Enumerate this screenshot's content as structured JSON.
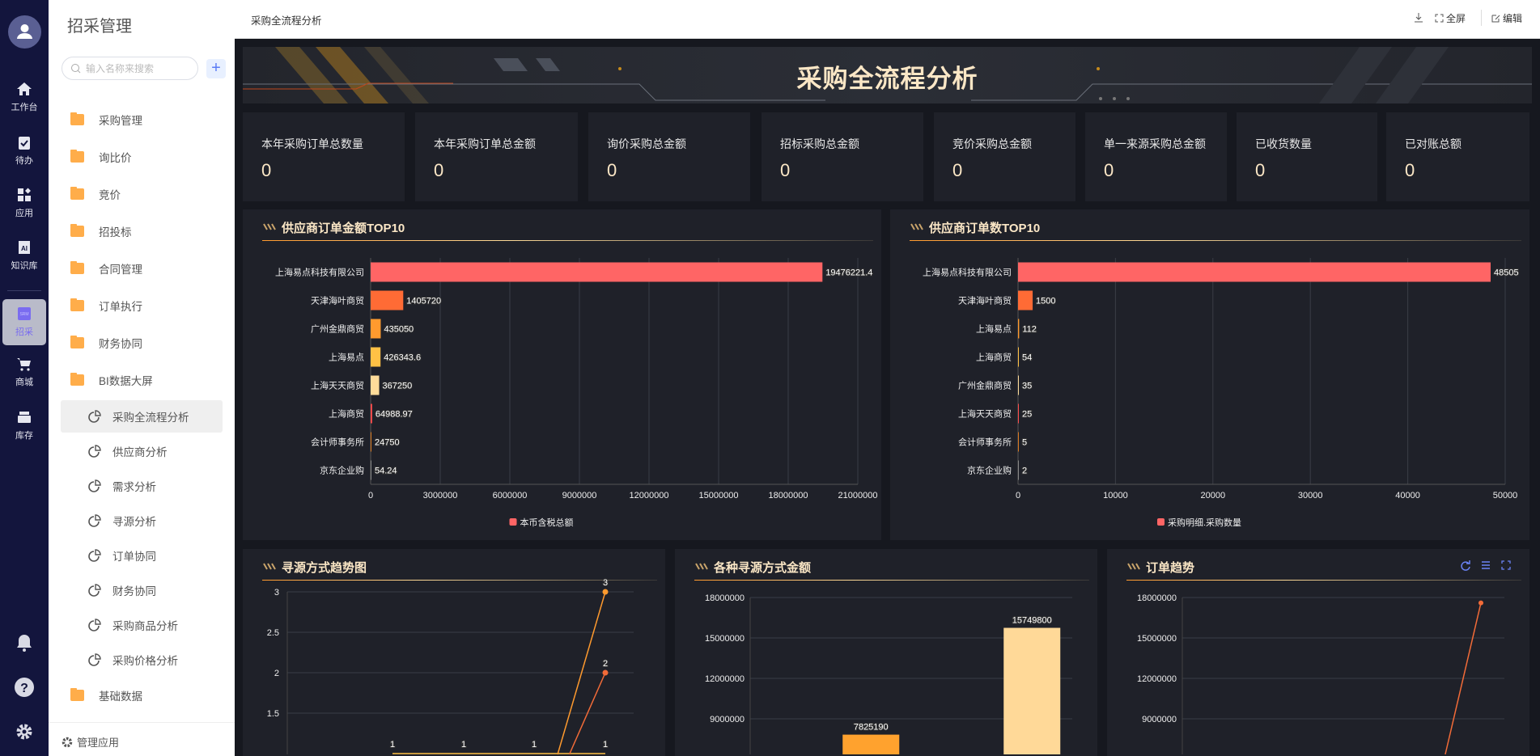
{
  "nav": {
    "items": [
      {
        "label": "工作台",
        "icon": "home-icon"
      },
      {
        "label": "待办",
        "icon": "clipboard-check-icon"
      },
      {
        "label": "应用",
        "icon": "apps-icon"
      },
      {
        "label": "知识库",
        "icon": "ai-book-icon"
      },
      {
        "label": "招采",
        "icon": "srm-icon",
        "active": true
      },
      {
        "label": "商城",
        "icon": "cart-icon"
      },
      {
        "label": "库存",
        "icon": "inbox-icon"
      }
    ],
    "bottom": [
      "bell-icon",
      "help-icon",
      "gear-icon"
    ]
  },
  "sidebar": {
    "title": "招采管理",
    "search_placeholder": "输入名称来搜索",
    "menu": [
      "采购管理",
      "询比价",
      "竞价",
      "招投标",
      "合同管理",
      "订单执行",
      "财务协同",
      "BI数据大屏"
    ],
    "sub": [
      "采购全流程分析",
      "供应商分析",
      "需求分析",
      "寻源分析",
      "订单协同",
      "财务协同",
      "采购商品分析",
      "采购价格分析"
    ],
    "selected": "采购全流程分析",
    "after": "基础数据",
    "footer": "管理应用"
  },
  "header": {
    "title": "采购全流程分析",
    "fullscreen": "全屏",
    "edit": "编辑"
  },
  "banner": {
    "title": "采购全流程分析"
  },
  "kpis": [
    {
      "label": "本年采购订单总数量",
      "value": "0"
    },
    {
      "label": "本年采购订单总金额",
      "value": "0"
    },
    {
      "label": "询价采购总金额",
      "value": "0"
    },
    {
      "label": "招标采购总金额",
      "value": "0"
    },
    {
      "label": "竞价采购总金额",
      "value": "0"
    },
    {
      "label": "单一来源采购总金额",
      "value": "0"
    },
    {
      "label": "已收货数量",
      "value": "0"
    },
    {
      "label": "已对账总额",
      "value": "0"
    }
  ],
  "colors": {
    "accent": "#ff6565",
    "title": "#fbe7c6",
    "bar_palette": [
      "#ff6565",
      "#ff6b35",
      "#ff9a2e",
      "#ffc145",
      "#ffdc9a",
      "#ff4d4d",
      "#d97a22",
      "#888"
    ]
  },
  "chart_data": [
    {
      "type": "bar",
      "orientation": "horizontal",
      "title": "供应商订单金额TOP10",
      "categories": [
        "上海易点科技有限公司",
        "天津海叶商贸",
        "广州金鼎商贸",
        "上海易点",
        "上海天天商贸",
        "上海商贸",
        "会计师事务所",
        "京东企业购"
      ],
      "values": [
        19476221.4,
        1405720,
        435050,
        426343.6,
        367250,
        64988.97,
        24750,
        54.24
      ],
      "labels": [
        "19476221.4",
        "1405720",
        "435050",
        "426343.6",
        "367250",
        "64988.97",
        "24750",
        "54.24"
      ],
      "xlim": [
        0,
        21000000
      ],
      "xticks": [
        "0",
        "3000000",
        "6000000",
        "9000000",
        "12000000",
        "15000000",
        "18000000",
        "21000000"
      ],
      "legend": "本币含税总额",
      "grid": true,
      "legend_position": "bottom"
    },
    {
      "type": "bar",
      "orientation": "horizontal",
      "title": "供应商订单数TOP10",
      "categories": [
        "上海易点科技有限公司",
        "天津海叶商贸",
        "上海易点",
        "上海商贸",
        "广州金鼎商贸",
        "上海天天商贸",
        "会计师事务所",
        "京东企业购"
      ],
      "values": [
        48505,
        1500,
        112,
        54,
        35,
        25,
        5,
        2
      ],
      "labels": [
        "48505",
        "1500",
        "112",
        "54",
        "35",
        "25",
        "5",
        "2"
      ],
      "xlim": [
        0,
        50000
      ],
      "xticks": [
        "0",
        "10000",
        "20000",
        "30000",
        "40000",
        "50000"
      ],
      "legend": "采购明细.采购数量",
      "grid": true,
      "legend_position": "bottom"
    },
    {
      "type": "line",
      "title": "寻源方式趋势图",
      "series": [
        {
          "values": [
            1,
            1,
            1,
            1
          ],
          "color": "#ffc145"
        },
        {
          "values": [
            0,
            0,
            0,
            3
          ],
          "color": "#ff9a2e"
        },
        {
          "values": [
            0,
            0,
            0,
            2
          ],
          "color": "#f26b38"
        }
      ],
      "yticks": [
        "3",
        "2.5",
        "2",
        "1.5"
      ],
      "ylim": [
        0,
        3
      ],
      "grid": true
    },
    {
      "type": "bar",
      "title": "各种寻源方式金额",
      "values": [
        0,
        7825190,
        0,
        15749800
      ],
      "labels": [
        "",
        "7825190",
        "",
        "15749800"
      ],
      "colors": [
        "#ff6565",
        "#ffa22e",
        "#ffc145",
        "#ffd998"
      ],
      "yticks": [
        "18000000",
        "15000000",
        "12000000",
        "9000000"
      ],
      "ylim": [
        0,
        18000000
      ],
      "grid": true
    },
    {
      "type": "line",
      "title": "订单趋势",
      "series": [
        {
          "values": [
            0,
            0,
            0,
            0,
            0,
            17600000
          ],
          "color": "#f26b38"
        }
      ],
      "yticks": [
        "18000000",
        "15000000",
        "12000000",
        "9000000"
      ],
      "ylim": [
        0,
        18000000
      ],
      "grid": true,
      "toolbox": [
        "refresh-icon",
        "list-icon",
        "fullscreen-icon"
      ]
    }
  ]
}
